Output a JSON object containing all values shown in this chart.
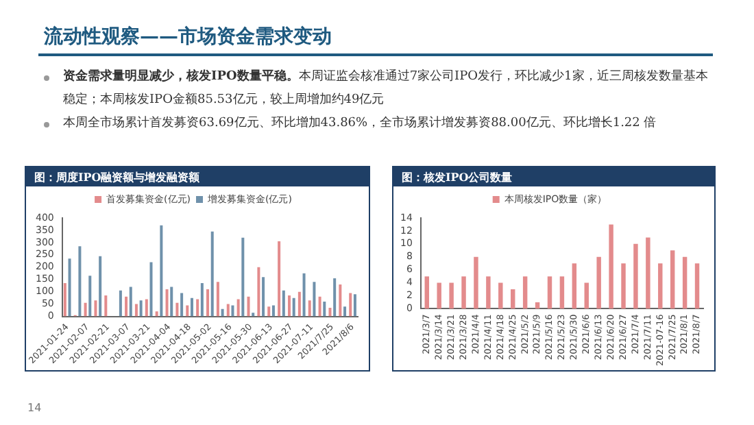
{
  "chart_data": [
    {
      "type": "other",
      "title": "流动性观察——市场资金需求变动",
      "annotations": [
        "资金需求量明显减少，核发IPO数量平稳。",
        "本周证监会核准通过7家公司IPO发行，环比减少1家，近三周核发数量基本稳定；本周核发IPO金额85.53亿元，较上周增加约49亿元",
        "本周全市场累计首发募资63.69亿元、环比增加43.86%，全市场累计增发募资88.00亿元、环比增长1.22 倍",
        "14"
      ]
    },
    {
      "type": "bar",
      "title": "图：周度IPO融资额与增发融资额",
      "categories": [
        "2021-01-24",
        null,
        "2021-02-07",
        null,
        "2021-02-21",
        null,
        "2021-03-07",
        null,
        "2021-03-21",
        null,
        "2021-04-04",
        null,
        "2021-04-18",
        null,
        "2021-05-02",
        null,
        "2021-05-16",
        null,
        "2021-05-30",
        null,
        "2021-06-13",
        null,
        "2021-06-27",
        null,
        "2021-07-11",
        null,
        "2021/7/25",
        null,
        "2021/8/6"
      ],
      "series": [
        {
          "name": "首发募集资金(亿元)",
          "color": "#e38b8c",
          "values": [
            135,
            5,
            55,
            65,
            85,
            0,
            80,
            50,
            70,
            20,
            110,
            55,
            45,
            70,
            110,
            140,
            50,
            70,
            80,
            200,
            40,
            305,
            85,
            100,
            65,
            80,
            35,
            130,
            95
          ]
        },
        {
          "name": "增发募集资金(亿元)",
          "color": "#6f91ab",
          "values": [
            235,
            285,
            165,
            245,
            0,
            105,
            120,
            65,
            220,
            370,
            120,
            95,
            75,
            135,
            345,
            30,
            45,
            320,
            15,
            160,
            45,
            105,
            75,
            175,
            140,
            60,
            155,
            40,
            90
          ]
        }
      ],
      "ylim": [
        0,
        400
      ],
      "yticks": [
        0,
        50,
        100,
        150,
        200,
        250,
        300,
        350,
        400
      ],
      "legend": "top",
      "grid": false
    },
    {
      "type": "bar",
      "title": "图：核发IPO公司数量",
      "categories": [
        "2021/3/7",
        "2021/3/14",
        "2021/3/21",
        "2021/3/28",
        "2021/4/4",
        "2021/4/11",
        "2021/4/18",
        "2021/4/25",
        "2021/5/2",
        "2021/5/9",
        "2021/5/16",
        "2021/5/23",
        "2021/5/30",
        "2021/6/6",
        "2021/6/13",
        "2021/6/20",
        "2021/6/27",
        "2021/7/4",
        "2021/7/11",
        "2021-07-16",
        "2021/7/25",
        "2021/8/1",
        "2021/8/7"
      ],
      "series": [
        {
          "name": "本周核发IPO数量（家）",
          "color": "#e38b8c",
          "values": [
            5,
            4,
            4,
            5,
            8,
            5,
            4,
            3,
            5,
            1,
            5,
            5,
            7,
            4,
            8,
            13,
            7,
            10,
            11,
            7,
            9,
            8,
            7
          ]
        }
      ],
      "ylim": [
        0,
        14
      ],
      "yticks": [
        0,
        2,
        4,
        6,
        8,
        10,
        12,
        14
      ],
      "legend": "top",
      "grid": false
    }
  ]
}
